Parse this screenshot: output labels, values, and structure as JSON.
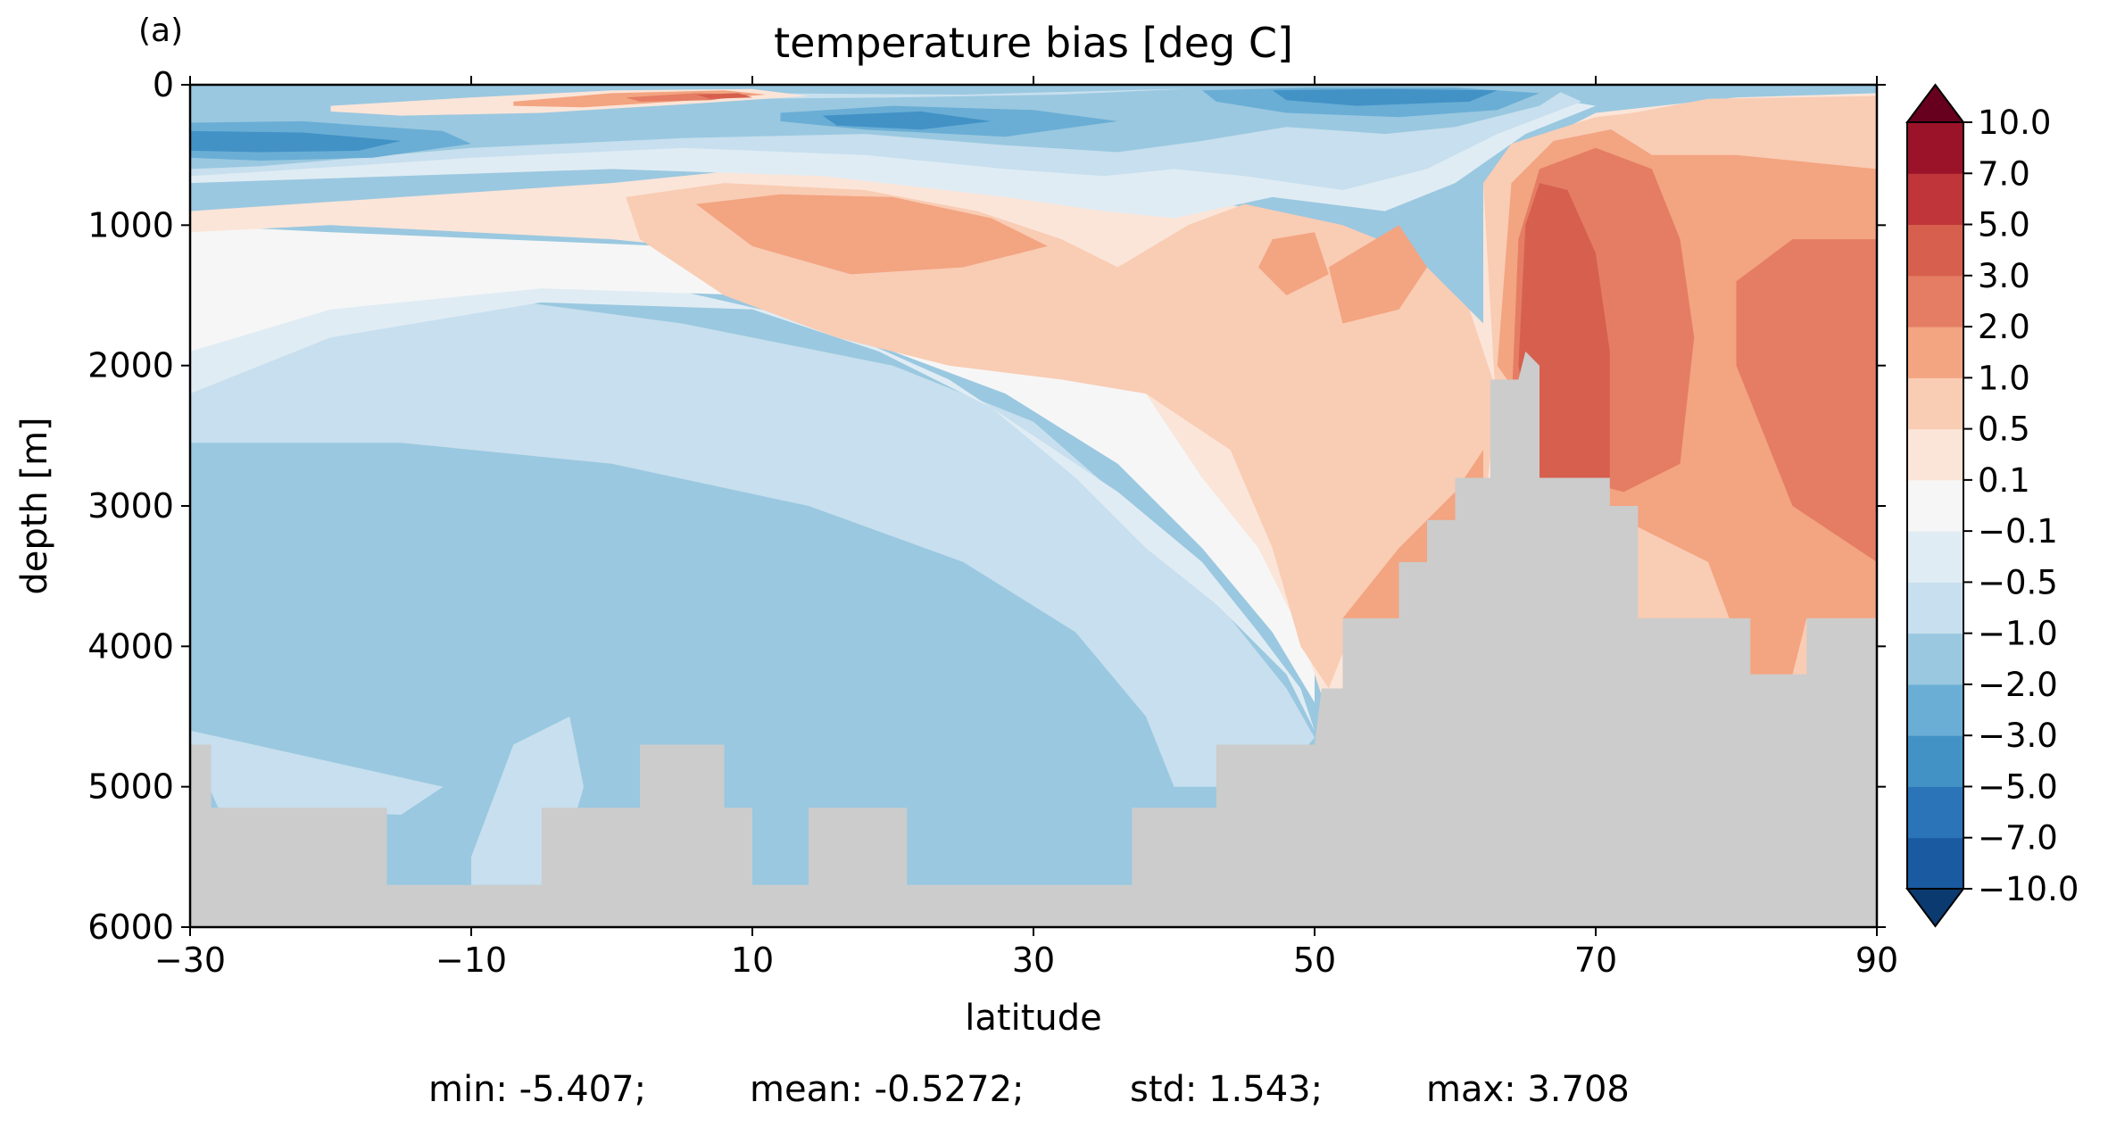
{
  "panel_label": "(a)",
  "chart_data": {
    "type": "heatmap",
    "title": "temperature bias [deg C]",
    "xlabel": "latitude",
    "ylabel": "depth [m]",
    "xlim": [
      -30,
      90
    ],
    "ylim": [
      6000,
      0
    ],
    "x_ticks": [
      -30,
      -10,
      10,
      30,
      50,
      70,
      90
    ],
    "x_tick_labels": [
      "−30",
      "−10",
      "10",
      "30",
      "50",
      "70",
      "90"
    ],
    "y_ticks": [
      0,
      1000,
      2000,
      3000,
      4000,
      5000,
      6000
    ],
    "y_tick_labels": [
      "0",
      "1000",
      "2000",
      "3000",
      "4000",
      "5000",
      "6000"
    ],
    "colorbar": {
      "levels": [
        -10,
        -7,
        -5,
        -3,
        -2,
        -1,
        -0.5,
        -0.1,
        0.1,
        0.5,
        1,
        2,
        3,
        5,
        7,
        10
      ],
      "tick_labels": [
        "−10.0",
        "−7.0",
        "−5.0",
        "−3.0",
        "−2.0",
        "−1.0",
        "−0.5",
        "−0.1",
        "0.1",
        "0.5",
        "1.0",
        "2.0",
        "3.0",
        "5.0",
        "7.0",
        "10.0"
      ],
      "colors": [
        "#0b3a70",
        "#1a5aa0",
        "#2c74b8",
        "#4292c6",
        "#6aaed5",
        "#9ac8e0",
        "#c7dfee",
        "#e0ecf4",
        "#f6f6f6",
        "#fbe5d8",
        "#f9ccb4",
        "#f3a481",
        "#e47d64",
        "#d6604d",
        "#c0353a",
        "#9a1328",
        "#67001f"
      ],
      "extend": "both"
    },
    "land_color": "#cccccc",
    "grid": false,
    "stats": {
      "min": "-5.407",
      "mean": "-0.5272",
      "std": "1.543",
      "max": "3.708"
    }
  },
  "stats_text": {
    "min": "min: -5.407;",
    "mean": "mean: -0.5272;",
    "std": "std: 1.543;",
    "max": "max: 3.708"
  }
}
